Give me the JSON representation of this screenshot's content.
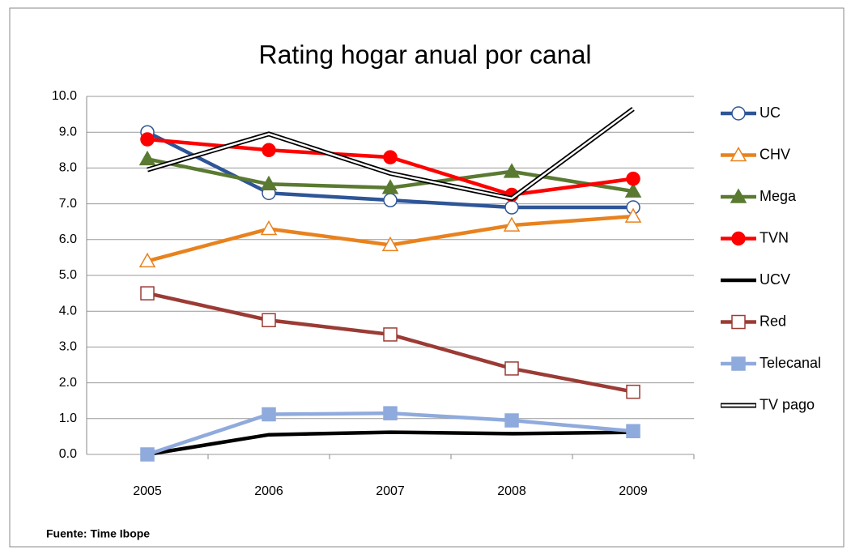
{
  "chart_data": {
    "type": "line",
    "title": "Rating hogar anual por canal",
    "footnote": "Fuente: Time Ibope",
    "categories": [
      "2005",
      "2006",
      "2007",
      "2008",
      "2009"
    ],
    "ylim": [
      0,
      10
    ],
    "yticks": [
      {
        "value": 0,
        "label": "0.0"
      },
      {
        "value": 1,
        "label": "1.0"
      },
      {
        "value": 2,
        "label": "2.0"
      },
      {
        "value": 3,
        "label": "3.0"
      },
      {
        "value": 4,
        "label": "4.0"
      },
      {
        "value": 5,
        "label": "5.0"
      },
      {
        "value": 6,
        "label": "6.0"
      },
      {
        "value": 7,
        "label": "7.0"
      },
      {
        "value": 8,
        "label": "8.0"
      },
      {
        "value": 9,
        "label": "9.0"
      },
      {
        "value": 10,
        "label": "10.0"
      }
    ],
    "grid": true,
    "legend": "right",
    "series": [
      {
        "name": "UC",
        "color": "#2e5597",
        "marker": "circle",
        "hollow": true,
        "values": [
          9.0,
          7.3,
          7.1,
          6.9,
          6.9
        ]
      },
      {
        "name": "CHV",
        "color": "#e8821e",
        "marker": "triangle",
        "hollow": true,
        "values": [
          5.4,
          6.3,
          5.85,
          6.4,
          6.65
        ]
      },
      {
        "name": "Mega",
        "color": "#5a7a32",
        "marker": "triangle",
        "hollow": false,
        "values": [
          8.25,
          7.55,
          7.45,
          7.9,
          7.35
        ]
      },
      {
        "name": "TVN",
        "color": "#ff0000",
        "marker": "circle",
        "hollow": false,
        "values": [
          8.8,
          8.5,
          8.3,
          7.25,
          7.7
        ]
      },
      {
        "name": "UCV",
        "color": "#000000",
        "marker": "none",
        "hollow": false,
        "values": [
          0.0,
          0.55,
          0.62,
          0.58,
          0.62
        ]
      },
      {
        "name": "Red",
        "color": "#9b3b35",
        "marker": "square",
        "hollow": true,
        "values": [
          4.5,
          3.75,
          3.35,
          2.4,
          1.75
        ]
      },
      {
        "name": "Telecanal",
        "color": "#8faadc",
        "marker": "square",
        "hollow": false,
        "values": [
          0.0,
          1.12,
          1.15,
          0.95,
          0.65
        ]
      },
      {
        "name": "TV pago",
        "color": "#000000",
        "marker": "none",
        "hollow": false,
        "style": "double",
        "values": [
          7.95,
          8.95,
          7.85,
          7.15,
          9.65
        ]
      }
    ]
  }
}
